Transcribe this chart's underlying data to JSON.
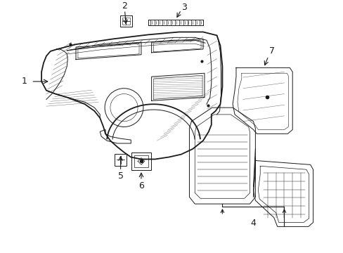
{
  "bg_color": "#ffffff",
  "line_color": "#1a1a1a",
  "figsize": [
    4.89,
    3.6
  ],
  "dpi": 100,
  "lw_main": 1.3,
  "lw_thin": 0.7,
  "lw_hair": 0.35,
  "label_fontsize": 9
}
